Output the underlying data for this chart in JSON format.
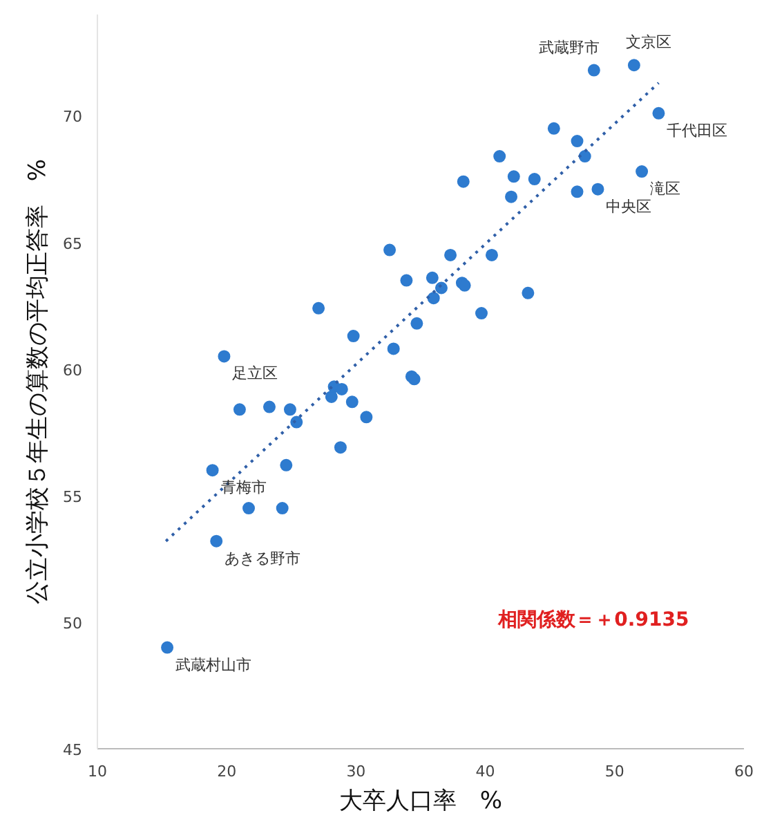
{
  "chart_data": {
    "type": "scatter",
    "xlabel": "大卒人口率　%",
    "ylabel": "公立小学校５年生の算数の平均正答率　%",
    "xlim": [
      10,
      60
    ],
    "ylim": [
      45,
      74
    ],
    "xticks": [
      10,
      20,
      30,
      40,
      50,
      60
    ],
    "yticks": [
      45,
      50,
      55,
      60,
      65,
      70
    ],
    "grid": false,
    "series": [
      {
        "marker": "circle",
        "color": "#2e7bcf",
        "x": [
          48.4,
          51.5,
          53.4,
          45.3,
          47.1,
          47.7,
          52.1,
          41.1,
          42.2,
          43.8,
          38.3,
          42.0,
          47.1,
          48.7,
          32.6,
          37.3,
          40.5,
          33.9,
          35.9,
          36.6,
          36.0,
          38.2,
          38.4,
          43.3,
          39.7,
          34.7,
          27.1,
          29.8,
          19.8,
          32.9,
          34.3,
          34.5,
          28.3,
          28.9,
          28.1,
          21.0,
          23.3,
          24.9,
          29.7,
          25.4,
          30.8,
          28.8,
          18.9,
          24.6,
          21.7,
          24.3,
          19.2,
          15.4
        ],
        "values": [
          71.8,
          72.0,
          70.1,
          69.5,
          69.0,
          68.4,
          67.8,
          68.4,
          67.6,
          67.5,
          67.4,
          66.8,
          67.0,
          67.1,
          64.7,
          64.5,
          64.5,
          63.5,
          63.6,
          63.2,
          62.8,
          63.4,
          63.3,
          63.0,
          62.2,
          61.8,
          62.4,
          61.3,
          60.5,
          60.8,
          59.7,
          59.6,
          59.3,
          59.2,
          58.9,
          58.4,
          58.5,
          58.4,
          58.7,
          57.9,
          58.1,
          56.9,
          56.0,
          56.2,
          54.5,
          54.5,
          53.2,
          49.0
        ]
      },
      {
        "type": "line",
        "color": "#2f5fa8",
        "line_style": "dotted",
        "x": [
          15.3,
          53.4
        ],
        "values": [
          53.2,
          71.3
        ]
      }
    ],
    "annotations": [
      {
        "text": "文京区",
        "x": 51.5,
        "y": 72.0
      },
      {
        "text": "武蔵野市",
        "x": 48.4,
        "y": 71.8
      },
      {
        "text": "千代田区",
        "x": 53.4,
        "y": 70.1
      },
      {
        "text": "滝区",
        "x": 52.1,
        "y": 67.8
      },
      {
        "text": "中央区",
        "x": 48.7,
        "y": 67.1
      },
      {
        "text": "足立区",
        "x": 19.8,
        "y": 60.5
      },
      {
        "text": "青梅市",
        "x": 18.9,
        "y": 56.0
      },
      {
        "text": "あきる野市",
        "x": 19.2,
        "y": 53.2
      },
      {
        "text": "武蔵村山市",
        "x": 15.4,
        "y": 49.0
      },
      "相関係数＝＋0.9135"
    ]
  }
}
